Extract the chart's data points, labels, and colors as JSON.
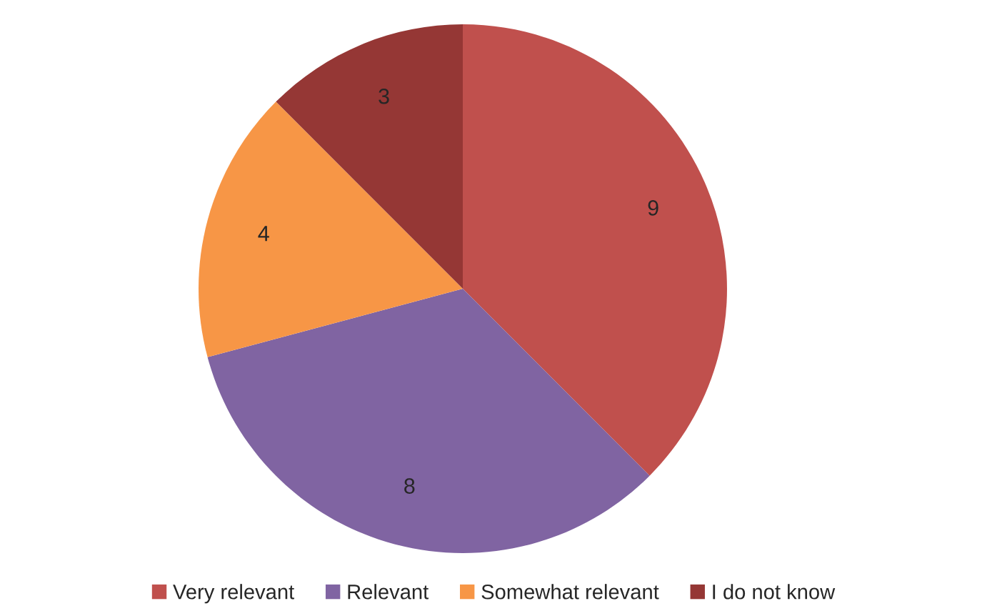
{
  "chart_data": {
    "type": "pie",
    "categories": [
      "Very relevant",
      "Relevant",
      "Somewhat relevant",
      "I do not know"
    ],
    "values": [
      9,
      8,
      4,
      3
    ],
    "colors": [
      "#c0504d",
      "#8064a2",
      "#f79646",
      "#953735"
    ],
    "data_labels": true,
    "legend": "bottom"
  }
}
